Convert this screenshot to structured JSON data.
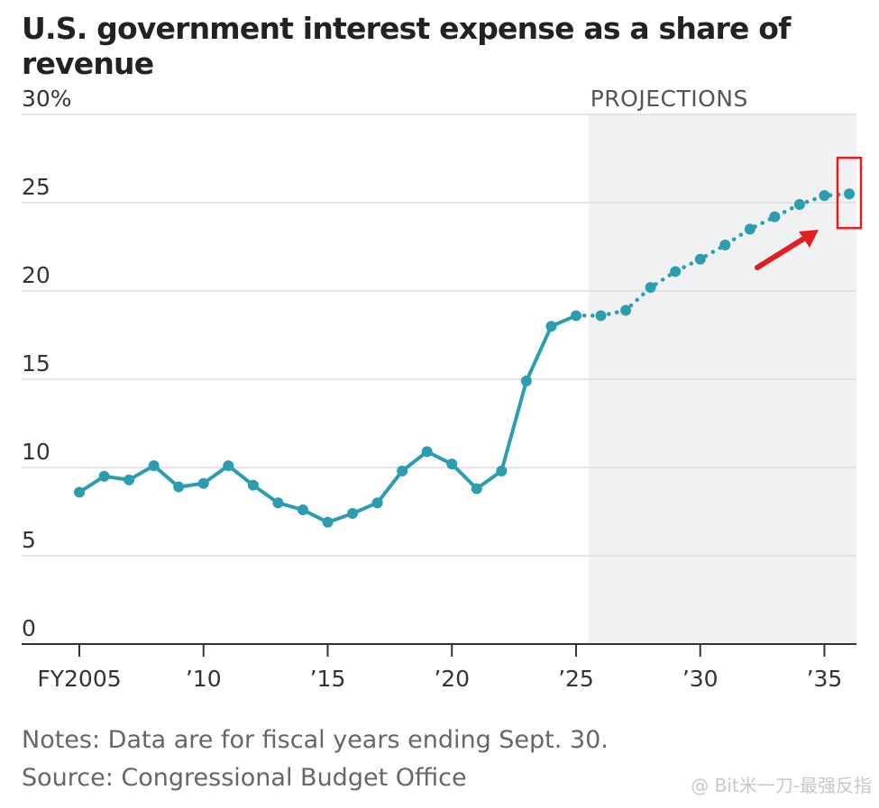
{
  "chart_data": {
    "type": "line",
    "title": "U.S. government interest expense as a share of revenue",
    "ylim": [
      0,
      30
    ],
    "yticks": [
      {
        "value": 0,
        "label": "0"
      },
      {
        "value": 5,
        "label": "5"
      },
      {
        "value": 10,
        "label": "10"
      },
      {
        "value": 15,
        "label": "15"
      },
      {
        "value": 20,
        "label": "20"
      },
      {
        "value": 25,
        "label": "25"
      },
      {
        "value": 30,
        "label": "30%"
      }
    ],
    "xlim": [
      2004.5,
      2036.5
    ],
    "xticks": [
      {
        "value": 2005,
        "label": "FY2005"
      },
      {
        "value": 2010,
        "label": "’10"
      },
      {
        "value": 2015,
        "label": "’15"
      },
      {
        "value": 2020,
        "label": "’20"
      },
      {
        "value": 2025,
        "label": "’25"
      },
      {
        "value": 2030,
        "label": "’30"
      },
      {
        "value": 2035,
        "label": "’35"
      }
    ],
    "projection_start": 2025.5,
    "projection_label": "PROJECTIONS",
    "grid": true,
    "series": [
      {
        "kind": "actual",
        "color": "#2a9db0",
        "points": [
          {
            "x": 2005,
            "y": 8.6
          },
          {
            "x": 2006,
            "y": 9.5
          },
          {
            "x": 2007,
            "y": 9.3
          },
          {
            "x": 2008,
            "y": 10.1
          },
          {
            "x": 2009,
            "y": 8.9
          },
          {
            "x": 2010,
            "y": 9.1
          },
          {
            "x": 2011,
            "y": 10.1
          },
          {
            "x": 2012,
            "y": 9.0
          },
          {
            "x": 2013,
            "y": 8.0
          },
          {
            "x": 2014,
            "y": 7.6
          },
          {
            "x": 2015,
            "y": 6.9
          },
          {
            "x": 2016,
            "y": 7.4
          },
          {
            "x": 2017,
            "y": 8.0
          },
          {
            "x": 2018,
            "y": 9.8
          },
          {
            "x": 2019,
            "y": 10.9
          },
          {
            "x": 2020,
            "y": 10.2
          },
          {
            "x": 2021,
            "y": 8.8
          },
          {
            "x": 2022,
            "y": 9.8
          },
          {
            "x": 2023,
            "y": 14.9
          },
          {
            "x": 2024,
            "y": 18.0
          },
          {
            "x": 2025,
            "y": 18.6
          }
        ]
      },
      {
        "kind": "projected",
        "color": "#2a9db0",
        "points": [
          {
            "x": 2025,
            "y": 18.6
          },
          {
            "x": 2026,
            "y": 18.6
          },
          {
            "x": 2027,
            "y": 18.9
          },
          {
            "x": 2028,
            "y": 20.2
          },
          {
            "x": 2029,
            "y": 21.1
          },
          {
            "x": 2030,
            "y": 21.8
          },
          {
            "x": 2031,
            "y": 22.6
          },
          {
            "x": 2032,
            "y": 23.5
          },
          {
            "x": 2033,
            "y": 24.2
          },
          {
            "x": 2034,
            "y": 24.9
          },
          {
            "x": 2035,
            "y": 25.4
          },
          {
            "x": 2036,
            "y": 25.5
          }
        ]
      }
    ],
    "highlight": {
      "x": 2036,
      "color": "#e02020"
    }
  },
  "notes": "Notes: Data are for fiscal years ending Sept. 30.",
  "source": "Source: Congressional Budget Office",
  "watermark": "@ Bit米一刀-最强反指"
}
